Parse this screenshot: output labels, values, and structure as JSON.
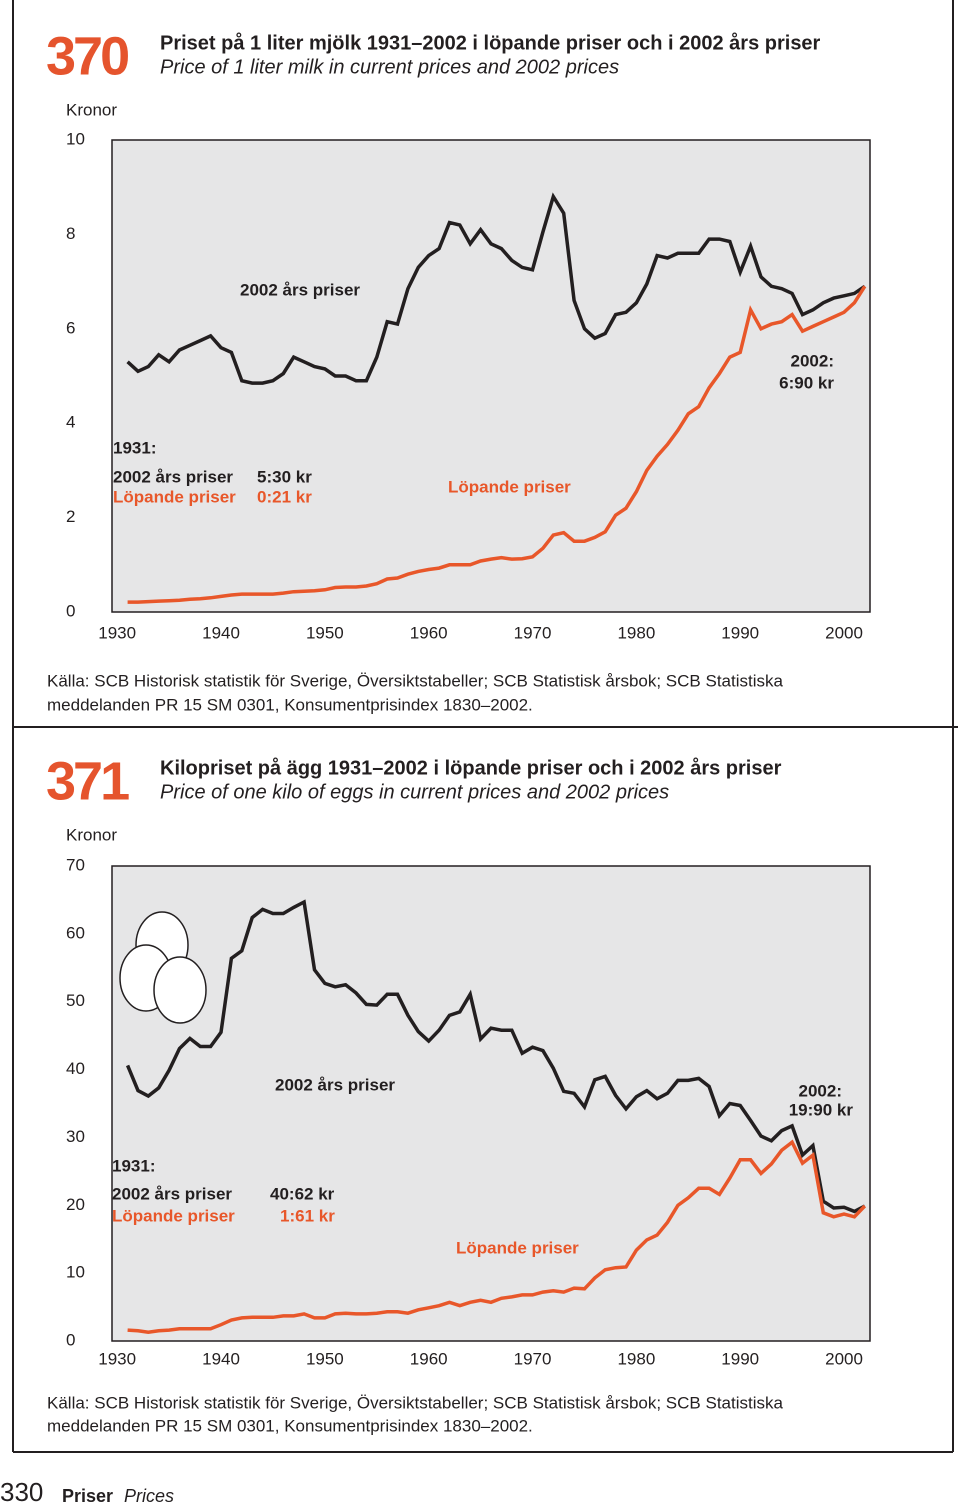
{
  "chart_data": [
    {
      "type": "line",
      "number": "370",
      "title": "Priset på 1 liter mjölk 1931–2002 i löpande priser och i 2002 års priser",
      "subtitle": "Price of 1 liter milk in current prices and 2002 prices",
      "ylabel": "Kronor",
      "x": [
        1931,
        1932,
        1933,
        1934,
        1935,
        1936,
        1937,
        1938,
        1939,
        1940,
        1941,
        1942,
        1943,
        1944,
        1945,
        1946,
        1947,
        1948,
        1949,
        1950,
        1951,
        1952,
        1953,
        1954,
        1955,
        1956,
        1957,
        1958,
        1959,
        1960,
        1961,
        1962,
        1963,
        1964,
        1965,
        1966,
        1967,
        1968,
        1969,
        1970,
        1971,
        1972,
        1973,
        1974,
        1975,
        1976,
        1977,
        1978,
        1979,
        1980,
        1981,
        1982,
        1983,
        1984,
        1985,
        1986,
        1987,
        1988,
        1989,
        1990,
        1991,
        1992,
        1993,
        1994,
        1995,
        1996,
        1997,
        1998,
        1999,
        2000,
        2001,
        2002
      ],
      "xlim": [
        1929.5,
        2002.5
      ],
      "xticks": [
        1930,
        1940,
        1950,
        1960,
        1970,
        1980,
        1990,
        2000
      ],
      "ylim": [
        0,
        10
      ],
      "yticks": [
        0,
        2,
        4,
        6,
        8,
        10
      ],
      "series": [
        {
          "name": "2002 års priser",
          "color": "#231f20",
          "values": [
            5.3,
            5.1,
            5.2,
            5.45,
            5.3,
            5.55,
            5.65,
            5.75,
            5.85,
            5.6,
            5.5,
            4.9,
            4.85,
            4.85,
            4.9,
            5.05,
            5.4,
            5.3,
            5.2,
            5.15,
            5.0,
            5.0,
            4.9,
            4.9,
            5.4,
            6.15,
            6.1,
            6.85,
            7.3,
            7.55,
            7.7,
            8.25,
            8.2,
            7.8,
            8.1,
            7.8,
            7.7,
            7.45,
            7.3,
            7.25,
            8.05,
            8.8,
            8.45,
            6.6,
            6.0,
            5.8,
            5.9,
            6.3,
            6.35,
            6.55,
            6.95,
            7.55,
            7.5,
            7.6,
            7.6,
            7.6,
            7.9,
            7.9,
            7.85,
            7.2,
            7.75,
            7.1,
            6.9,
            6.85,
            6.75,
            6.3,
            6.4,
            6.55,
            6.65,
            6.7,
            6.75,
            6.9
          ]
        },
        {
          "name": "Löpande priser",
          "color": "#e8572a",
          "values": [
            0.21,
            0.21,
            0.22,
            0.23,
            0.24,
            0.25,
            0.27,
            0.28,
            0.3,
            0.33,
            0.36,
            0.38,
            0.38,
            0.38,
            0.38,
            0.4,
            0.43,
            0.44,
            0.45,
            0.47,
            0.52,
            0.53,
            0.53,
            0.55,
            0.6,
            0.7,
            0.72,
            0.8,
            0.86,
            0.9,
            0.93,
            1.0,
            1.0,
            1.0,
            1.08,
            1.12,
            1.15,
            1.12,
            1.13,
            1.17,
            1.35,
            1.63,
            1.68,
            1.5,
            1.5,
            1.58,
            1.7,
            2.05,
            2.2,
            2.55,
            3.0,
            3.3,
            3.55,
            3.85,
            4.2,
            4.35,
            4.75,
            5.05,
            5.4,
            5.5,
            6.4,
            6.0,
            6.1,
            6.15,
            6.3,
            5.95,
            6.05,
            6.15,
            6.25,
            6.35,
            6.55,
            6.9
          ]
        }
      ],
      "annotations": [
        "1931:",
        "2002 års priser",
        "5:30 kr",
        "Löpande priser",
        "0:21 kr",
        "2002:",
        "6:90 kr"
      ],
      "source": [
        "Källa: SCB Historisk statistik för Sverige, Översiktstabeller; SCB Statistisk årsbok; SCB Statistiska",
        "meddelanden PR 15 SM 0301, Konsumentprisindex 1830–2002."
      ]
    },
    {
      "type": "line",
      "number": "371",
      "title": "Kilopriset på ägg 1931–2002 i löpande priser och i 2002 års priser",
      "subtitle": "Price of one kilo of eggs in current prices and 2002 prices",
      "ylabel": "Kronor",
      "x": [
        1931,
        1932,
        1933,
        1934,
        1935,
        1936,
        1937,
        1938,
        1939,
        1940,
        1941,
        1942,
        1943,
        1944,
        1945,
        1946,
        1947,
        1948,
        1949,
        1950,
        1951,
        1952,
        1953,
        1954,
        1955,
        1956,
        1957,
        1958,
        1959,
        1960,
        1961,
        1962,
        1963,
        1964,
        1965,
        1966,
        1967,
        1968,
        1969,
        1970,
        1971,
        1972,
        1973,
        1974,
        1975,
        1976,
        1977,
        1978,
        1979,
        1980,
        1981,
        1982,
        1983,
        1984,
        1985,
        1986,
        1987,
        1988,
        1989,
        1990,
        1991,
        1992,
        1993,
        1994,
        1995,
        1996,
        1997,
        1998,
        1999,
        2000,
        2001,
        2002
      ],
      "xlim": [
        1929.5,
        2002.5
      ],
      "xticks": [
        1930,
        1940,
        1950,
        1960,
        1970,
        1980,
        1990,
        2000
      ],
      "ylim": [
        0,
        70
      ],
      "yticks": [
        0,
        10,
        20,
        30,
        40,
        50,
        60,
        70
      ],
      "series": [
        {
          "name": "2002 års priser",
          "color": "#231f20",
          "values": [
            40.62,
            36.9,
            36.1,
            37.3,
            39.9,
            43.1,
            44.6,
            43.4,
            43.4,
            45.5,
            56.4,
            57.5,
            62.4,
            63.6,
            63.0,
            63.0,
            63.9,
            64.7,
            54.7,
            52.7,
            52.2,
            52.5,
            51.3,
            49.6,
            49.5,
            51.1,
            51.1,
            48.0,
            45.6,
            44.2,
            45.8,
            48.0,
            48.5,
            51.1,
            44.5,
            46.1,
            45.8,
            45.8,
            42.4,
            43.3,
            42.8,
            40.2,
            36.8,
            36.5,
            34.5,
            38.5,
            39.0,
            36.2,
            34.2,
            36.0,
            36.9,
            35.7,
            36.5,
            38.4,
            38.4,
            38.7,
            37.5,
            33.2,
            35.0,
            34.7,
            32.5,
            30.2,
            29.5,
            31.0,
            31.7,
            27.4,
            28.8,
            20.6,
            19.6,
            19.7,
            19.1,
            19.9
          ]
        },
        {
          "name": "Löpande priser",
          "color": "#e8572a",
          "values": [
            1.61,
            1.5,
            1.3,
            1.5,
            1.6,
            1.8,
            1.8,
            1.8,
            1.8,
            2.4,
            3.1,
            3.4,
            3.5,
            3.5,
            3.5,
            3.7,
            3.7,
            4.0,
            3.4,
            3.4,
            4.0,
            4.1,
            4.0,
            4.0,
            4.1,
            4.3,
            4.3,
            4.1,
            4.6,
            4.9,
            5.2,
            5.7,
            5.2,
            5.7,
            6.0,
            5.7,
            6.3,
            6.5,
            6.8,
            6.8,
            7.2,
            7.4,
            7.2,
            7.8,
            7.7,
            9.3,
            10.5,
            10.8,
            10.9,
            13.4,
            14.9,
            15.6,
            17.5,
            20.0,
            21.1,
            22.5,
            22.5,
            21.6,
            24.0,
            26.7,
            26.7,
            24.7,
            26.1,
            28.1,
            29.3,
            26.2,
            27.4,
            18.9,
            18.3,
            18.7,
            18.3,
            19.9
          ]
        }
      ],
      "annotations": [
        "1931:",
        "2002 års priser",
        "40:62 kr",
        "Löpande priser",
        "1:61 kr",
        "2002:",
        "19:90 kr"
      ],
      "source": [
        "Källa: SCB Historisk statistik för Sverige, Översiktstabeller; SCB Statistisk årsbok; SCB Statistiska",
        "meddelanden PR 15 SM 0301, Konsumentprisindex 1830–2002."
      ]
    }
  ],
  "footer": {
    "page": "330",
    "section": "Priser",
    "section_en": "Prices"
  }
}
